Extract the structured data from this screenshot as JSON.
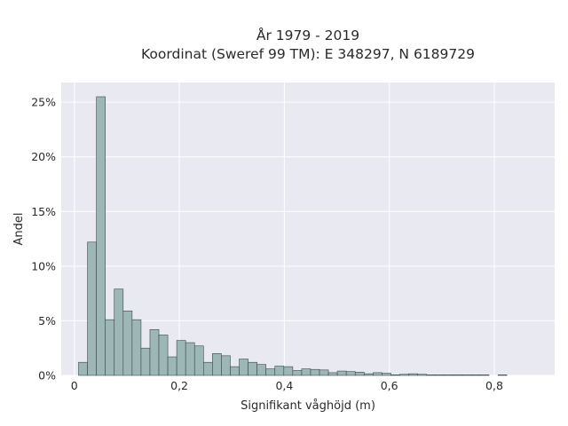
{
  "chart_data": {
    "type": "bar",
    "title_line1": "År 1979 - 2019",
    "title_line2": "Koordinat (Sweref 99 TM): E 348297, N 6189729",
    "xlabel": "Signifikant våghöjd (m)",
    "ylabel": "Andel",
    "xlim": [
      -0.025,
      0.915
    ],
    "ylim": [
      0,
      26.8
    ],
    "x_ticks": [
      {
        "value": 0,
        "label": "0"
      },
      {
        "value": 0.2,
        "label": "0,2"
      },
      {
        "value": 0.4,
        "label": "0,4"
      },
      {
        "value": 0.6,
        "label": "0,6"
      },
      {
        "value": 0.8,
        "label": "0,8"
      }
    ],
    "y_ticks": [
      {
        "value": 0,
        "label": "0%"
      },
      {
        "value": 5,
        "label": "5%"
      },
      {
        "value": 10,
        "label": "10%"
      },
      {
        "value": 15,
        "label": "15%"
      },
      {
        "value": 20,
        "label": "20%"
      },
      {
        "value": 25,
        "label": "25%"
      }
    ],
    "grid": true,
    "bin_width": 0.017,
    "bin_start": 0.008,
    "values": [
      1.2,
      12.2,
      25.5,
      5.1,
      7.9,
      5.9,
      5.1,
      2.5,
      4.2,
      3.7,
      1.7,
      3.2,
      3.0,
      2.7,
      1.2,
      2.0,
      1.8,
      0.8,
      1.5,
      1.2,
      1.0,
      0.6,
      0.85,
      0.8,
      0.45,
      0.6,
      0.55,
      0.5,
      0.25,
      0.4,
      0.35,
      0.3,
      0.15,
      0.25,
      0.2,
      0.05,
      0.1,
      0.15,
      0.1,
      0.05,
      0.05,
      0.05,
      0.05,
      0.05,
      0.05,
      0.05,
      0,
      0.05
    ],
    "colors": {
      "bar_fill": "#9db7b6",
      "bar_stroke": "#3c4848",
      "plot_bg": "#e9e9f1",
      "grid": "#ffffff"
    }
  }
}
